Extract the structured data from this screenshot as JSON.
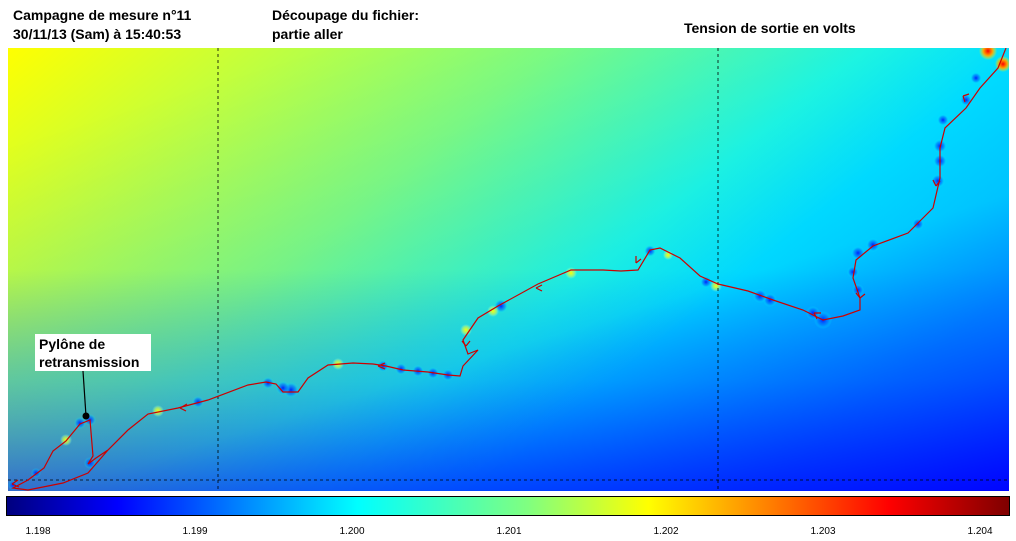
{
  "header": {
    "campaign_line1": "Campagne de mesure n°11",
    "campaign_line2": "30/11/13 (Sam) à 15:40:53",
    "decoupage_line1": "Découpage du fichier:",
    "decoupage_line2": "partie aller",
    "quantity_title": "Tension de sortie en volts"
  },
  "map": {
    "pylon_label_line1": "Pylône de",
    "pylon_label_line2": "retransmission",
    "route_color": "#cc0000"
  },
  "colorbar": {
    "min": 1.198,
    "max": 1.204,
    "tick_labels": [
      "1.198",
      "1.199",
      "1.200",
      "1.201",
      "1.202",
      "1.203",
      "1.204"
    ]
  }
}
